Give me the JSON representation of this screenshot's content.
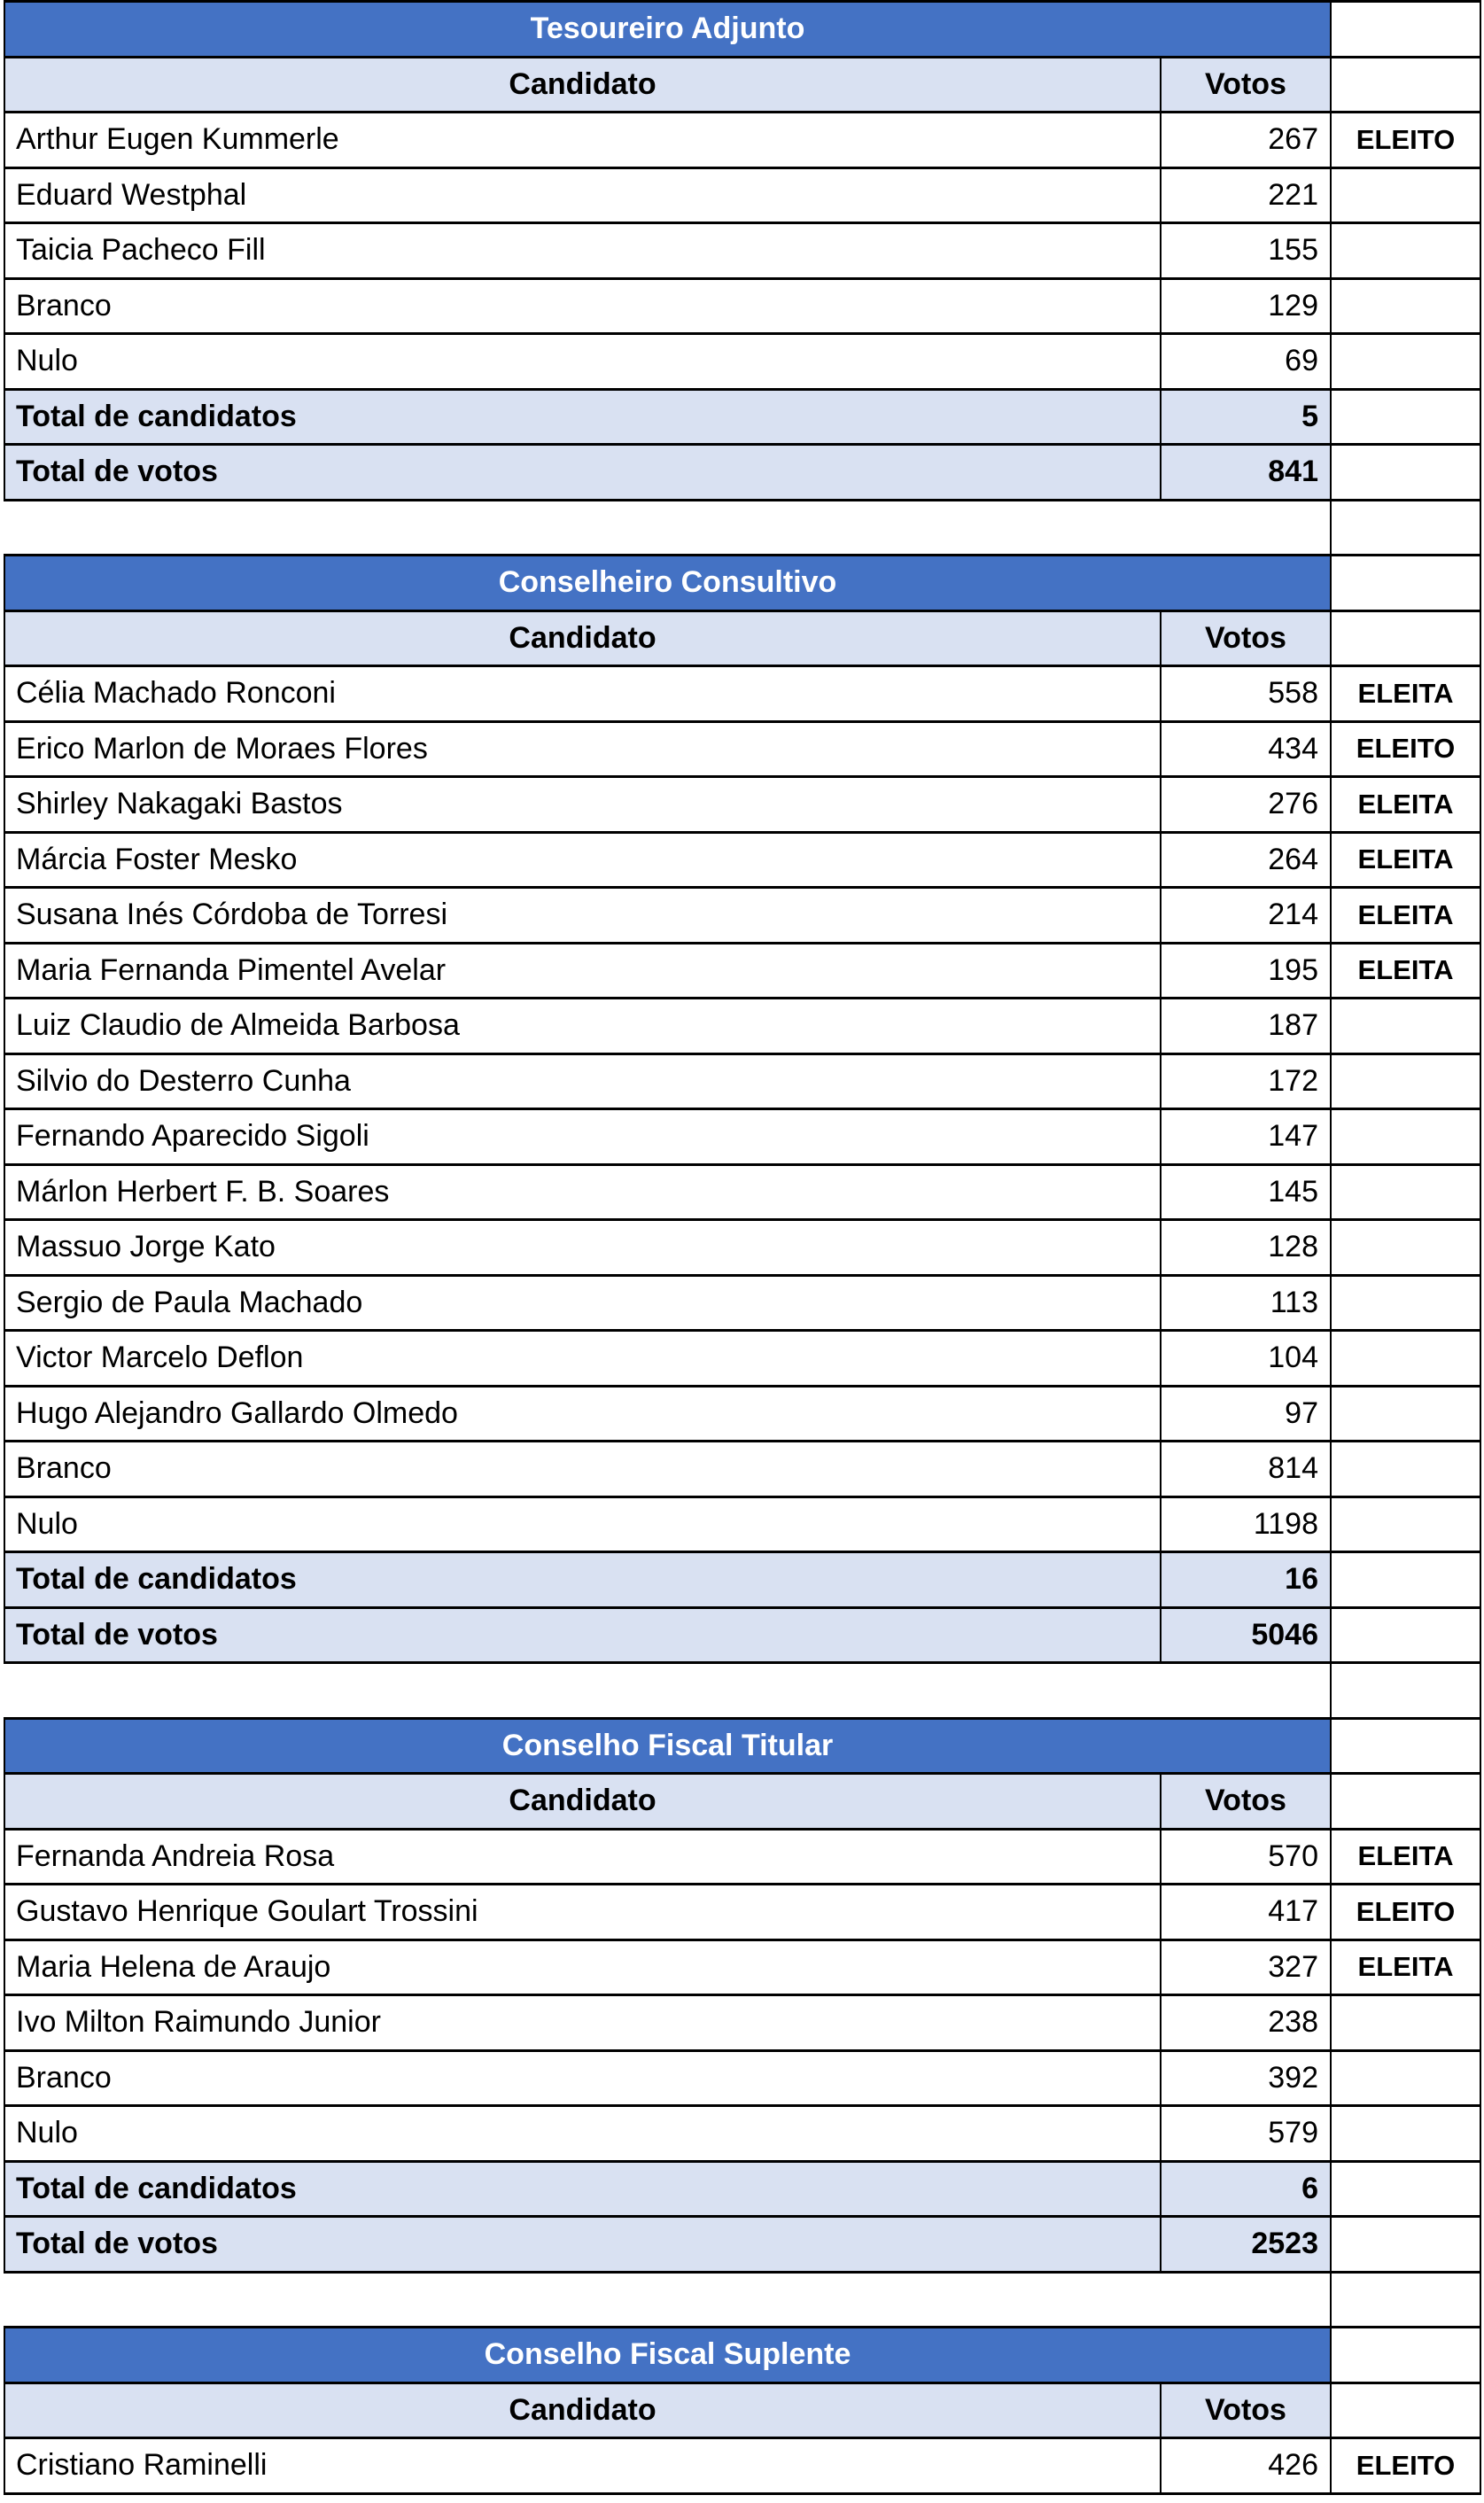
{
  "colors": {
    "title_bg": "#4472C4",
    "title_text": "#FFFFFF",
    "header_bg": "#D9E1F2",
    "total_bg": "#D9E1F2",
    "border": "#000000"
  },
  "columns": {
    "candidate": "Candidato",
    "votes": "Votos"
  },
  "sections": [
    {
      "title": "Tesoureiro Adjunto",
      "rows": [
        {
          "name": "Arthur Eugen Kummerle",
          "votes": "267",
          "status": "ELEITO"
        },
        {
          "name": "Eduard Westphal",
          "votes": "221",
          "status": ""
        },
        {
          "name": "Taicia Pacheco Fill",
          "votes": "155",
          "status": ""
        },
        {
          "name": "Branco",
          "votes": "129",
          "status": ""
        },
        {
          "name": "Nulo",
          "votes": "69",
          "status": ""
        }
      ],
      "totals": [
        {
          "label": "Total de candidatos",
          "value": "5"
        },
        {
          "label": "Total de votos",
          "value": "841"
        }
      ]
    },
    {
      "title": "Conselheiro Consultivo",
      "rows": [
        {
          "name": "Célia Machado Ronconi",
          "votes": "558",
          "status": "ELEITA"
        },
        {
          "name": "Erico Marlon de Moraes Flores",
          "votes": "434",
          "status": "ELEITO"
        },
        {
          "name": "Shirley Nakagaki Bastos",
          "votes": "276",
          "status": "ELEITA"
        },
        {
          "name": "Márcia Foster Mesko",
          "votes": "264",
          "status": "ELEITA"
        },
        {
          "name": "Susana Inés Córdoba de Torresi",
          "votes": "214",
          "status": "ELEITA"
        },
        {
          "name": "Maria Fernanda Pimentel Avelar",
          "votes": "195",
          "status": "ELEITA"
        },
        {
          "name": "Luiz Claudio de Almeida Barbosa",
          "votes": "187",
          "status": ""
        },
        {
          "name": "Silvio do Desterro Cunha",
          "votes": "172",
          "status": ""
        },
        {
          "name": "Fernando Aparecido Sigoli",
          "votes": "147",
          "status": ""
        },
        {
          "name": "Márlon Herbert F. B. Soares",
          "votes": "145",
          "status": ""
        },
        {
          "name": "Massuo Jorge Kato",
          "votes": "128",
          "status": ""
        },
        {
          "name": "Sergio de Paula Machado",
          "votes": "113",
          "status": ""
        },
        {
          "name": "Victor Marcelo Deflon",
          "votes": "104",
          "status": ""
        },
        {
          "name": "Hugo Alejandro Gallardo Olmedo",
          "votes": "97",
          "status": ""
        },
        {
          "name": "Branco",
          "votes": "814",
          "status": ""
        },
        {
          "name": "Nulo",
          "votes": "1198",
          "status": ""
        }
      ],
      "totals": [
        {
          "label": "Total de candidatos",
          "value": "16"
        },
        {
          "label": "Total de votos",
          "value": "5046"
        }
      ]
    },
    {
      "title": "Conselho Fiscal Titular",
      "rows": [
        {
          "name": "Fernanda Andreia Rosa",
          "votes": "570",
          "status": "ELEITA"
        },
        {
          "name": "Gustavo Henrique Goulart Trossini",
          "votes": "417",
          "status": "ELEITO"
        },
        {
          "name": "Maria Helena de Araujo",
          "votes": "327",
          "status": "ELEITA"
        },
        {
          "name": "Ivo Milton Raimundo Junior",
          "votes": "238",
          "status": ""
        },
        {
          "name": "Branco",
          "votes": "392",
          "status": ""
        },
        {
          "name": "Nulo",
          "votes": "579",
          "status": ""
        }
      ],
      "totals": [
        {
          "label": "Total de candidatos",
          "value": "6"
        },
        {
          "label": "Total de votos",
          "value": "2523"
        }
      ]
    },
    {
      "title": "Conselho Fiscal Suplente",
      "rows": [
        {
          "name": "Cristiano Raminelli",
          "votes": "426",
          "status": "ELEITO"
        }
      ],
      "totals": []
    }
  ]
}
